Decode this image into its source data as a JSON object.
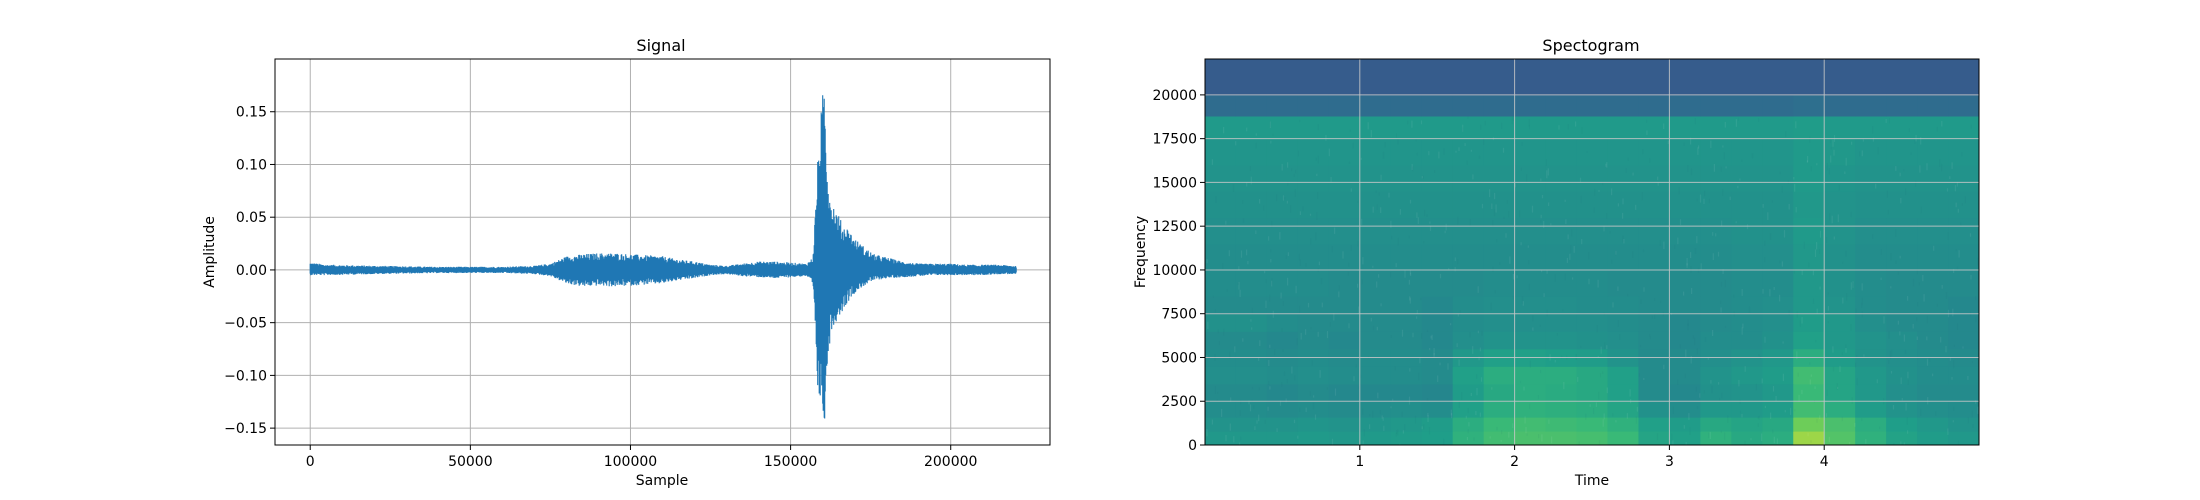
{
  "chart_data": [
    {
      "type": "line",
      "title": "Signal",
      "xlabel": "Sample",
      "ylabel": "Amplitude",
      "xlim": [
        -11000,
        231000
      ],
      "ylim": [
        -0.166,
        0.2
      ],
      "x_ticks": [
        0,
        50000,
        100000,
        150000,
        200000
      ],
      "x_tick_labels": [
        "0",
        "50000",
        "100000",
        "150000",
        "200000"
      ],
      "y_ticks": [
        -0.15,
        -0.1,
        -0.05,
        0.0,
        0.05,
        0.1,
        0.15
      ],
      "y_tick_labels": [
        "−0.15",
        "−0.10",
        "−0.05",
        "0.00",
        "0.05",
        "0.10",
        "0.15"
      ],
      "grid": true,
      "line_color": "#1f77b4",
      "sample_count": 220500,
      "envelope": {
        "x": [
          0,
          5000,
          20000,
          40000,
          60000,
          70000,
          75000,
          80000,
          85000,
          90000,
          95000,
          100000,
          110000,
          115000,
          120000,
          125000,
          130000,
          135000,
          140000,
          145000,
          150000,
          155000,
          157000,
          158500,
          159500,
          160500,
          161500,
          162500,
          164000,
          166000,
          168000,
          170000,
          173000,
          176000,
          180000,
          185000,
          190000,
          195000,
          200000,
          205000,
          210000,
          215000,
          220500
        ],
        "upper": [
          0.007,
          0.005,
          0.004,
          0.003,
          0.003,
          0.004,
          0.006,
          0.013,
          0.015,
          0.016,
          0.016,
          0.015,
          0.013,
          0.01,
          0.008,
          0.005,
          0.004,
          0.006,
          0.008,
          0.008,
          0.007,
          0.006,
          0.012,
          0.105,
          0.15,
          0.183,
          0.11,
          0.07,
          0.06,
          0.045,
          0.04,
          0.03,
          0.022,
          0.015,
          0.012,
          0.008,
          0.006,
          0.006,
          0.006,
          0.005,
          0.005,
          0.005,
          0.004
        ],
        "lower": [
          -0.005,
          -0.005,
          -0.004,
          -0.003,
          -0.003,
          -0.004,
          -0.006,
          -0.013,
          -0.016,
          -0.015,
          -0.016,
          -0.015,
          -0.013,
          -0.01,
          -0.008,
          -0.005,
          -0.004,
          -0.006,
          -0.007,
          -0.008,
          -0.007,
          -0.006,
          -0.015,
          -0.12,
          -0.13,
          -0.15,
          -0.095,
          -0.06,
          -0.05,
          -0.04,
          -0.03,
          -0.022,
          -0.015,
          -0.01,
          -0.008,
          -0.007,
          -0.006,
          -0.005,
          -0.005,
          -0.005,
          -0.005,
          -0.004,
          -0.004
        ]
      }
    },
    {
      "type": "heatmap",
      "title": "Spectogram",
      "xlabel": "Time",
      "ylabel": "Frequency",
      "xlim": [
        0,
        5.0
      ],
      "ylim": [
        0,
        22050
      ],
      "x_ticks": [
        1,
        2,
        3,
        4
      ],
      "x_tick_labels": [
        "1",
        "2",
        "3",
        "4"
      ],
      "y_ticks": [
        0,
        2500,
        5000,
        7500,
        10000,
        12500,
        15000,
        17500,
        20000
      ],
      "y_tick_labels": [
        "0",
        "2500",
        "5000",
        "7500",
        "10000",
        "12500",
        "15000",
        "17500",
        "20000"
      ],
      "grid": true,
      "colormap": "viridis",
      "intensity_grid": {
        "time_edges": [
          0,
          0.2,
          0.4,
          0.6,
          0.8,
          1.0,
          1.2,
          1.4,
          1.6,
          1.8,
          2.0,
          2.2,
          2.4,
          2.6,
          2.8,
          3.0,
          3.2,
          3.4,
          3.6,
          3.8,
          4.0,
          4.2,
          4.4,
          4.6,
          4.8,
          5.0
        ],
        "freq_edges": [
          0,
          800,
          1600,
          2500,
          3500,
          4500,
          5500,
          6500,
          7500,
          8500,
          10000,
          11500,
          13000,
          14500,
          16000,
          17500,
          18800,
          20000,
          22050
        ],
        "values": [
          [
            0.6,
            0.6,
            0.6,
            0.61,
            0.6,
            0.61,
            0.62,
            0.63,
            0.72,
            0.78,
            0.8,
            0.8,
            0.79,
            0.76,
            0.66,
            0.64,
            0.72,
            0.68,
            0.7,
            0.92,
            0.82,
            0.72,
            0.65,
            0.62,
            0.6
          ],
          [
            0.58,
            0.58,
            0.58,
            0.59,
            0.58,
            0.59,
            0.6,
            0.62,
            0.7,
            0.76,
            0.78,
            0.77,
            0.76,
            0.72,
            0.64,
            0.62,
            0.68,
            0.66,
            0.68,
            0.88,
            0.8,
            0.7,
            0.63,
            0.6,
            0.58
          ],
          [
            0.55,
            0.55,
            0.54,
            0.55,
            0.54,
            0.55,
            0.56,
            0.55,
            0.64,
            0.7,
            0.72,
            0.71,
            0.7,
            0.66,
            0.57,
            0.55,
            0.6,
            0.6,
            0.62,
            0.78,
            0.7,
            0.62,
            0.58,
            0.56,
            0.55
          ],
          [
            0.54,
            0.54,
            0.53,
            0.54,
            0.53,
            0.53,
            0.53,
            0.52,
            0.62,
            0.68,
            0.7,
            0.69,
            0.68,
            0.64,
            0.54,
            0.53,
            0.57,
            0.58,
            0.6,
            0.76,
            0.66,
            0.6,
            0.56,
            0.54,
            0.54
          ],
          [
            0.56,
            0.56,
            0.55,
            0.56,
            0.55,
            0.55,
            0.55,
            0.54,
            0.64,
            0.7,
            0.7,
            0.7,
            0.68,
            0.64,
            0.54,
            0.54,
            0.58,
            0.6,
            0.62,
            0.78,
            0.66,
            0.6,
            0.57,
            0.55,
            0.55
          ],
          [
            0.55,
            0.55,
            0.54,
            0.55,
            0.54,
            0.55,
            0.55,
            0.54,
            0.6,
            0.64,
            0.64,
            0.63,
            0.62,
            0.58,
            0.54,
            0.54,
            0.56,
            0.58,
            0.6,
            0.7,
            0.62,
            0.58,
            0.56,
            0.55,
            0.54
          ],
          [
            0.54,
            0.54,
            0.53,
            0.54,
            0.53,
            0.54,
            0.54,
            0.53,
            0.56,
            0.58,
            0.58,
            0.58,
            0.57,
            0.56,
            0.54,
            0.53,
            0.55,
            0.55,
            0.57,
            0.64,
            0.6,
            0.58,
            0.56,
            0.54,
            0.53
          ],
          [
            0.57,
            0.57,
            0.55,
            0.54,
            0.54,
            0.54,
            0.54,
            0.53,
            0.55,
            0.56,
            0.56,
            0.56,
            0.56,
            0.55,
            0.54,
            0.53,
            0.54,
            0.55,
            0.56,
            0.62,
            0.6,
            0.56,
            0.54,
            0.54,
            0.53
          ],
          [
            0.54,
            0.54,
            0.54,
            0.54,
            0.54,
            0.54,
            0.54,
            0.53,
            0.55,
            0.56,
            0.56,
            0.56,
            0.55,
            0.55,
            0.54,
            0.54,
            0.54,
            0.55,
            0.56,
            0.6,
            0.58,
            0.55,
            0.54,
            0.54,
            0.53
          ],
          [
            0.55,
            0.55,
            0.55,
            0.55,
            0.54,
            0.54,
            0.54,
            0.54,
            0.54,
            0.55,
            0.55,
            0.55,
            0.55,
            0.54,
            0.54,
            0.54,
            0.54,
            0.55,
            0.55,
            0.6,
            0.57,
            0.55,
            0.54,
            0.54,
            0.54
          ],
          [
            0.55,
            0.55,
            0.55,
            0.55,
            0.55,
            0.55,
            0.55,
            0.55,
            0.55,
            0.55,
            0.55,
            0.55,
            0.55,
            0.55,
            0.55,
            0.55,
            0.55,
            0.56,
            0.56,
            0.6,
            0.57,
            0.55,
            0.55,
            0.55,
            0.55
          ],
          [
            0.56,
            0.56,
            0.56,
            0.56,
            0.56,
            0.56,
            0.56,
            0.56,
            0.56,
            0.56,
            0.56,
            0.56,
            0.56,
            0.56,
            0.56,
            0.56,
            0.56,
            0.57,
            0.57,
            0.61,
            0.58,
            0.56,
            0.56,
            0.56,
            0.56
          ],
          [
            0.57,
            0.57,
            0.57,
            0.57,
            0.57,
            0.57,
            0.57,
            0.57,
            0.57,
            0.57,
            0.57,
            0.57,
            0.57,
            0.57,
            0.57,
            0.57,
            0.57,
            0.57,
            0.57,
            0.6,
            0.58,
            0.57,
            0.57,
            0.57,
            0.57
          ],
          [
            0.58,
            0.58,
            0.58,
            0.58,
            0.58,
            0.58,
            0.58,
            0.58,
            0.58,
            0.58,
            0.58,
            0.58,
            0.58,
            0.58,
            0.58,
            0.58,
            0.58,
            0.58,
            0.58,
            0.61,
            0.59,
            0.58,
            0.58,
            0.58,
            0.58
          ],
          [
            0.59,
            0.59,
            0.59,
            0.59,
            0.59,
            0.59,
            0.59,
            0.59,
            0.59,
            0.59,
            0.59,
            0.59,
            0.59,
            0.59,
            0.59,
            0.59,
            0.59,
            0.59,
            0.59,
            0.61,
            0.6,
            0.59,
            0.59,
            0.59,
            0.59
          ],
          [
            0.61,
            0.61,
            0.61,
            0.61,
            0.61,
            0.61,
            0.61,
            0.61,
            0.61,
            0.61,
            0.61,
            0.61,
            0.61,
            0.61,
            0.61,
            0.61,
            0.61,
            0.61,
            0.61,
            0.62,
            0.61,
            0.61,
            0.61,
            0.61,
            0.61
          ],
          [
            0.4,
            0.4,
            0.4,
            0.4,
            0.4,
            0.4,
            0.4,
            0.4,
            0.4,
            0.4,
            0.4,
            0.4,
            0.4,
            0.4,
            0.4,
            0.4,
            0.4,
            0.4,
            0.4,
            0.41,
            0.4,
            0.4,
            0.4,
            0.4,
            0.4
          ],
          [
            0.33,
            0.33,
            0.33,
            0.33,
            0.33,
            0.33,
            0.33,
            0.33,
            0.33,
            0.33,
            0.33,
            0.33,
            0.33,
            0.33,
            0.33,
            0.33,
            0.33,
            0.33,
            0.33,
            0.33,
            0.33,
            0.33,
            0.33,
            0.33,
            0.33
          ]
        ]
      }
    }
  ]
}
